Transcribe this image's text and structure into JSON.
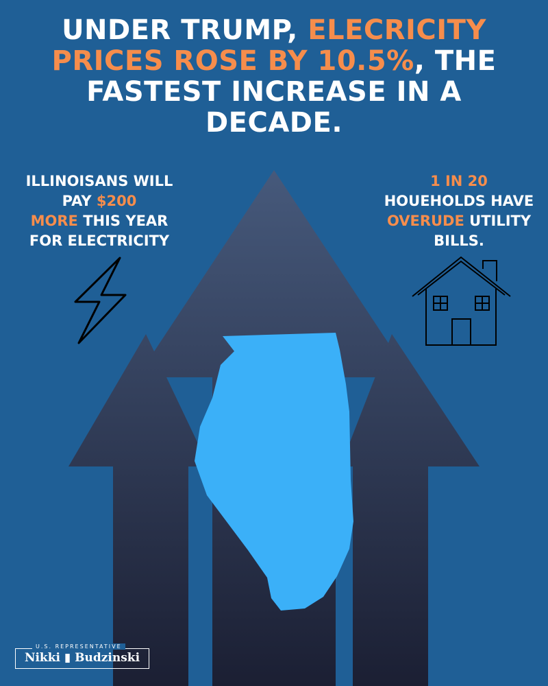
{
  "headline": {
    "part1": "UNDER TRUMP, ",
    "highlight": "ELECRICITY PRICES ROSE BY 10.5%",
    "part2": ", THE FASTEST INCREASE IN A DECADE."
  },
  "left_stat": {
    "line1": "ILLINOISANS WILL PAY ",
    "highlight1": "$200",
    "highlight2": "MORE",
    "line2": " THIS YEAR FOR ELECTRICITY"
  },
  "right_stat": {
    "highlight1": "1 IN 20",
    "line1": "HOUEHOLDS HAVE ",
    "highlight2": "OVERUDE",
    "line2": " UTILITY BILLS."
  },
  "logo": {
    "subtitle": "U.S. REPRESENTATIVE",
    "name": "Nikki ▮ Budzinski"
  },
  "icons": [
    "lightning-bolt-icon",
    "house-icon",
    "up-arrow-icon",
    "illinois-map-icon"
  ],
  "colors": {
    "background": "#1f5f96",
    "accent": "#f68d4c",
    "illinois": "#3bb0f8",
    "arrow_top": "#46597b",
    "arrow_bottom": "#1b1f33"
  }
}
